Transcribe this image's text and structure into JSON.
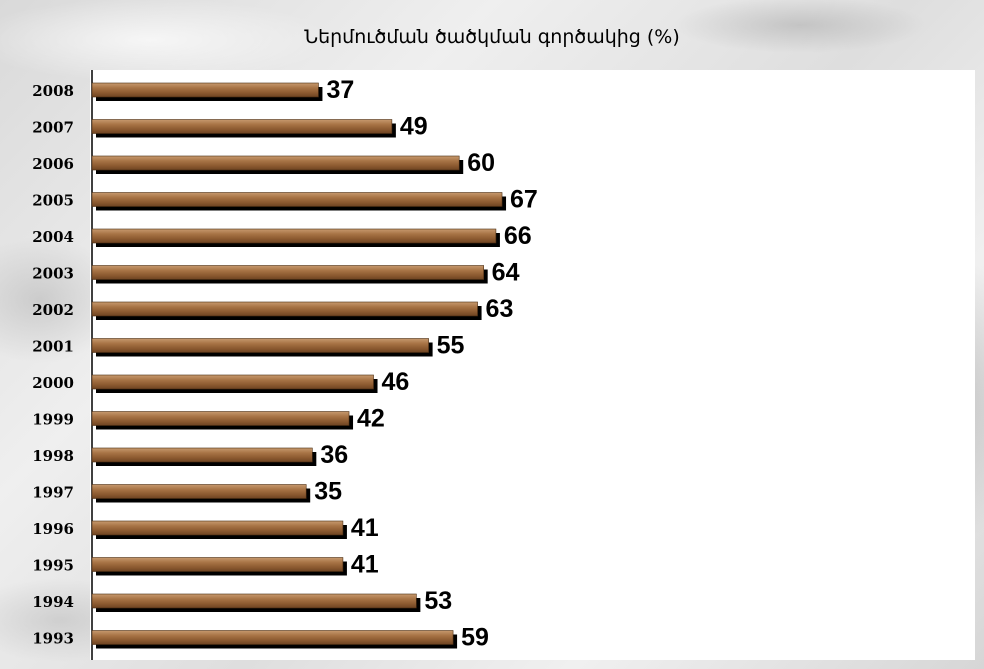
{
  "chart_data": {
    "type": "bar",
    "orientation": "horizontal",
    "title": "Ներմուծման ծածկման գործակից (%)",
    "xlabel": "",
    "ylabel": "",
    "categories": [
      "2008",
      "2007",
      "2006",
      "2005",
      "2004",
      "2003",
      "2002",
      "2001",
      "2000",
      "1999",
      "1998",
      "1997",
      "1996",
      "1995",
      "1994",
      "1993"
    ],
    "values": [
      37,
      49,
      60,
      67,
      66,
      64,
      63,
      55,
      46,
      42,
      36,
      35,
      41,
      41,
      53,
      59
    ],
    "xlim": [
      0,
      80
    ],
    "grid": false,
    "legend": "none",
    "bar_color": "#9b6a3c",
    "bar_shadow_color": "#000000"
  }
}
